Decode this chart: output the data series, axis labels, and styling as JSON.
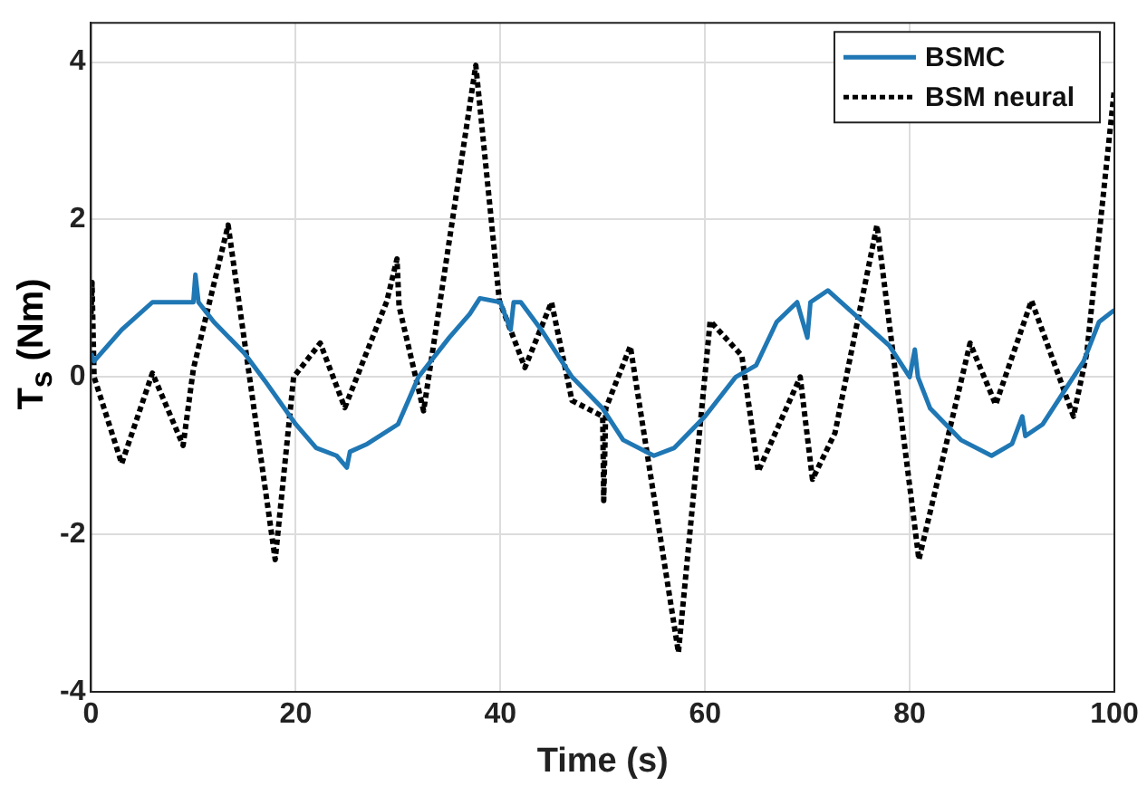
{
  "chart_data": {
    "type": "line",
    "xlabel": "Time (s)",
    "ylabel": "T$_{s}$ (Nm)",
    "xlim": [
      0,
      100
    ],
    "xticks": [
      0,
      20,
      40,
      60,
      80,
      100
    ],
    "ylim": [
      -4,
      4.5
    ],
    "yticks": [
      -4,
      -2,
      0,
      2,
      4
    ],
    "grid": true,
    "legend": "top right",
    "marker": "none",
    "series": [
      {
        "name": "BSMC",
        "color": "#1f77b4",
        "line_style": "solid",
        "x": [
          0,
          0.3,
          3,
          6,
          10,
          10.2,
          10.5,
          12,
          15,
          17,
          20,
          22,
          24,
          25,
          25.3,
          27,
          30,
          31,
          32,
          35,
          37,
          38,
          40,
          41,
          41.3,
          42,
          44,
          47,
          50,
          52,
          55,
          57,
          60,
          63,
          65,
          67,
          69,
          70,
          70.3,
          72,
          75,
          78,
          80,
          80.5,
          80.8,
          82,
          85,
          88,
          90,
          91,
          91.3,
          93,
          95,
          97,
          98.5,
          100
        ],
        "values": [
          0.3,
          0.2,
          0.6,
          0.95,
          0.95,
          1.3,
          0.95,
          0.7,
          0.3,
          -0.05,
          -0.6,
          -0.9,
          -1.0,
          -1.15,
          -0.95,
          -0.85,
          -0.6,
          -0.3,
          0.0,
          0.5,
          0.8,
          1.0,
          0.95,
          0.6,
          0.95,
          0.95,
          0.6,
          0.0,
          -0.4,
          -0.8,
          -1.0,
          -0.9,
          -0.5,
          0.0,
          0.15,
          0.7,
          0.95,
          0.5,
          0.95,
          1.1,
          0.75,
          0.4,
          0.0,
          0.35,
          0.0,
          -0.4,
          -0.8,
          -1.0,
          -0.85,
          -0.5,
          -0.75,
          -0.6,
          -0.2,
          0.2,
          0.7,
          0.85
        ]
      },
      {
        "name": "BSM neural",
        "color": "#000000",
        "line_style": "dotted",
        "x": [
          0,
          0.1,
          0.3,
          3,
          6,
          9,
          10,
          13.4,
          18,
          19.8,
          22.4,
          24.8,
          28.9,
          29.9,
          30.1,
          32.5,
          37.6,
          39.9,
          42.4,
          45,
          47,
          50,
          50.1,
          50.3,
          52.7,
          57.4,
          60.5,
          63.6,
          65.2,
          69.3,
          70.5,
          72.7,
          76.8,
          80.9,
          85.9,
          88.4,
          91.9,
          96,
          97.3,
          100
        ],
        "values": [
          0.8,
          1.2,
          0.0,
          -1.1,
          0.05,
          -0.87,
          0.1,
          1.93,
          -2.32,
          0.0,
          0.43,
          -0.39,
          0.96,
          1.5,
          0.9,
          -0.43,
          3.96,
          0.97,
          0.12,
          0.95,
          -0.3,
          -0.5,
          -1.57,
          -0.4,
          0.39,
          -3.5,
          0.71,
          0.27,
          -1.2,
          0.0,
          -1.3,
          -0.71,
          1.93,
          -2.32,
          0.43,
          -0.35,
          0.97,
          -0.5,
          0.3,
          3.66
        ]
      }
    ]
  }
}
